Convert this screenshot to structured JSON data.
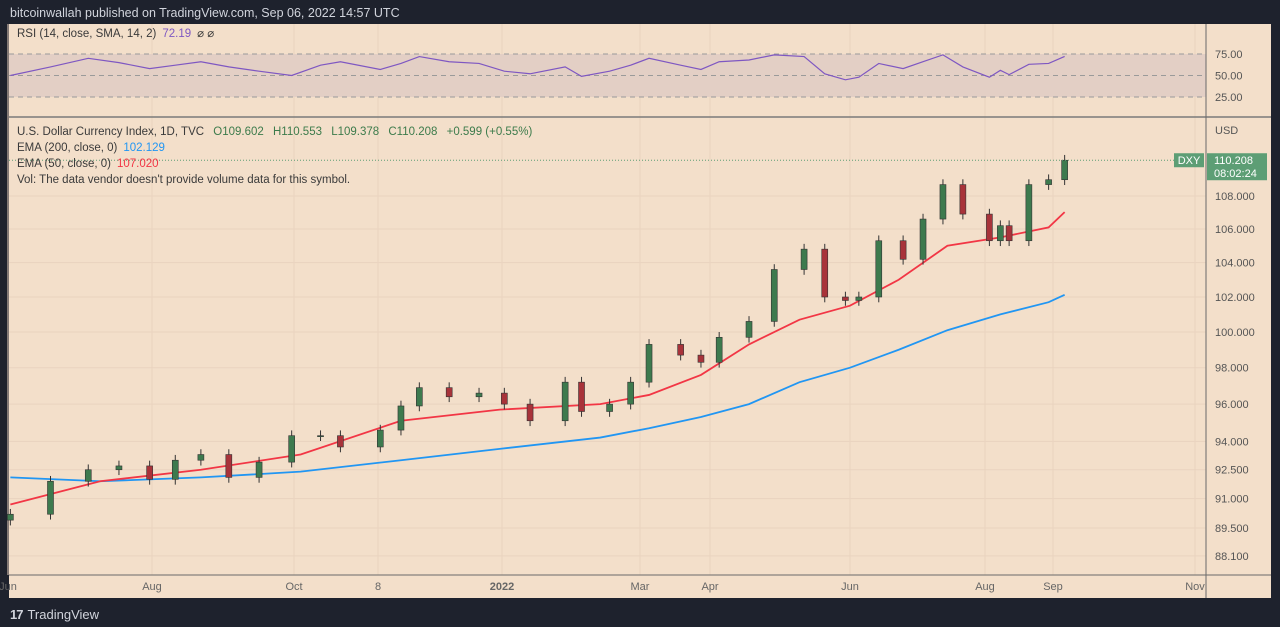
{
  "header": {
    "published": "bitcoinwallah published on TradingView.com, Sep 06, 2022 14:57 UTC"
  },
  "rsi": {
    "label": "RSI (14, close, SMA, 14, 2)",
    "value": "72.19",
    "extra": "⌀ ⌀",
    "color": "#7e57c2",
    "levels": [
      75,
      50,
      25
    ],
    "ticks": [
      "75.00",
      "50.00",
      "25.00"
    ]
  },
  "legend": {
    "symbol": "U.S. Dollar Currency Index, 1D, TVC",
    "open": "O109.602",
    "high": "H110.553",
    "low": "L109.378",
    "close": "C110.208",
    "change": "+0.599 (+0.55%)",
    "ema200_label": "EMA (200, close, 0)",
    "ema200_value": "102.129",
    "ema50_label": "EMA (50, close, 0)",
    "ema50_value": "107.020",
    "vol": "Vol: The data vendor doesn't provide volume data for this symbol."
  },
  "price_axis": {
    "currency": "USD",
    "ticks": [
      "108.000",
      "106.000",
      "104.000",
      "102.000",
      "100.000",
      "98.000",
      "96.000",
      "94.000",
      "92.500",
      "91.000",
      "89.500",
      "88.100"
    ],
    "last_symbol": "DXY",
    "last_price": "110.208",
    "countdown": "08:02:24",
    "last_color": "#5d9e75"
  },
  "footer": {
    "brand": "TradingView"
  },
  "chart_data": {
    "type": "candlestick",
    "scale": "log",
    "ylim": [
      87.6,
      111.5
    ],
    "colors": {
      "up": "#3d7a4e",
      "down": "#a8333a",
      "ema200": "#2196f3",
      "ema50": "#f23645",
      "rsi": "#7e57c2"
    },
    "x_ticks": [
      {
        "label": "Jun",
        "date": "2021-06-01"
      },
      {
        "label": "Aug",
        "date": "2021-08-01"
      },
      {
        "label": "Oct",
        "date": "2021-10-01"
      },
      {
        "label": "8",
        "date": "2021-11-08"
      },
      {
        "label": "2022",
        "date": "2022-01-01"
      },
      {
        "label": "Mar",
        "date": "2022-03-01"
      },
      {
        "label": "Apr",
        "date": "2022-04-01"
      },
      {
        "label": "Jun",
        "date": "2022-06-01"
      },
      {
        "label": "Aug",
        "date": "2022-08-01"
      },
      {
        "label": "Sep",
        "date": "2022-09-01"
      },
      {
        "label": "Nov",
        "date": "2022-11-01"
      }
    ],
    "y_ticks": [
      108,
      106,
      104,
      102,
      100,
      98,
      96,
      94,
      92.5,
      91,
      89.5,
      88.1
    ],
    "dates": [
      "2021-06-02",
      "2021-06-19",
      "2021-07-05",
      "2021-07-18",
      "2021-07-31",
      "2021-08-11",
      "2021-08-22",
      "2021-09-03",
      "2021-09-16",
      "2021-09-30",
      "2021-10-13",
      "2021-10-22",
      "2021-11-09",
      "2021-11-18",
      "2021-11-26",
      "2021-12-09",
      "2021-12-22",
      "2022-01-02",
      "2022-01-13",
      "2022-01-28",
      "2022-02-04",
      "2022-02-16",
      "2022-02-25",
      "2022-03-05",
      "2022-03-19",
      "2022-03-28",
      "2022-04-05",
      "2022-04-18",
      "2022-04-29",
      "2022-05-12",
      "2022-05-21",
      "2022-05-30",
      "2022-06-05",
      "2022-06-14",
      "2022-06-25",
      "2022-07-04",
      "2022-07-13",
      "2022-07-22",
      "2022-08-03",
      "2022-08-08",
      "2022-08-12",
      "2022-08-21",
      "2022-08-30",
      "2022-09-06"
    ],
    "close": [
      90.2,
      91.9,
      92.5,
      92.7,
      92.0,
      93.0,
      93.3,
      92.1,
      92.9,
      94.3,
      94.3,
      93.7,
      94.6,
      95.9,
      96.9,
      96.4,
      96.6,
      96.0,
      95.1,
      97.2,
      95.6,
      96.0,
      97.2,
      99.3,
      98.7,
      98.3,
      99.7,
      100.6,
      103.6,
      104.8,
      102.0,
      101.8,
      102.0,
      105.3,
      104.2,
      106.6,
      108.7,
      106.9,
      105.3,
      106.2,
      105.3,
      108.7,
      109.0,
      110.208
    ],
    "rsi": [
      50,
      60,
      70,
      65,
      58,
      62,
      66,
      60,
      55,
      50,
      62,
      66,
      57,
      64,
      72,
      66,
      64,
      55,
      52,
      60,
      49,
      55,
      62,
      70,
      62,
      57,
      66,
      68,
      74,
      72,
      52,
      45,
      48,
      64,
      58,
      66,
      74,
      60,
      48,
      56,
      51,
      63,
      64,
      72.19
    ],
    "ema50": {
      "dates": [
        "2021-06-02",
        "2021-07-10",
        "2021-08-22",
        "2021-10-04",
        "2021-11-18",
        "2021-12-31",
        "2022-02-12",
        "2022-03-05",
        "2022-03-28",
        "2022-04-18",
        "2022-05-10",
        "2022-06-01",
        "2022-06-23",
        "2022-07-15",
        "2022-08-08",
        "2022-08-30",
        "2022-09-06"
      ],
      "values": [
        90.7,
        91.9,
        92.5,
        93.3,
        95.1,
        95.7,
        96.0,
        96.5,
        97.6,
        99.3,
        100.7,
        101.5,
        103.0,
        105.0,
        105.5,
        106.1,
        107.02
      ]
    },
    "ema200": {
      "dates": [
        "2021-06-02",
        "2021-07-10",
        "2021-08-22",
        "2021-10-04",
        "2021-11-18",
        "2021-12-31",
        "2022-02-12",
        "2022-03-05",
        "2022-03-28",
        "2022-04-18",
        "2022-05-10",
        "2022-06-01",
        "2022-06-23",
        "2022-07-15",
        "2022-08-08",
        "2022-08-30",
        "2022-09-06"
      ],
      "values": [
        92.1,
        91.9,
        92.1,
        92.4,
        93.0,
        93.6,
        94.2,
        94.7,
        95.3,
        96.0,
        97.2,
        98.0,
        99.0,
        100.1,
        101.0,
        101.7,
        102.129
      ]
    }
  }
}
